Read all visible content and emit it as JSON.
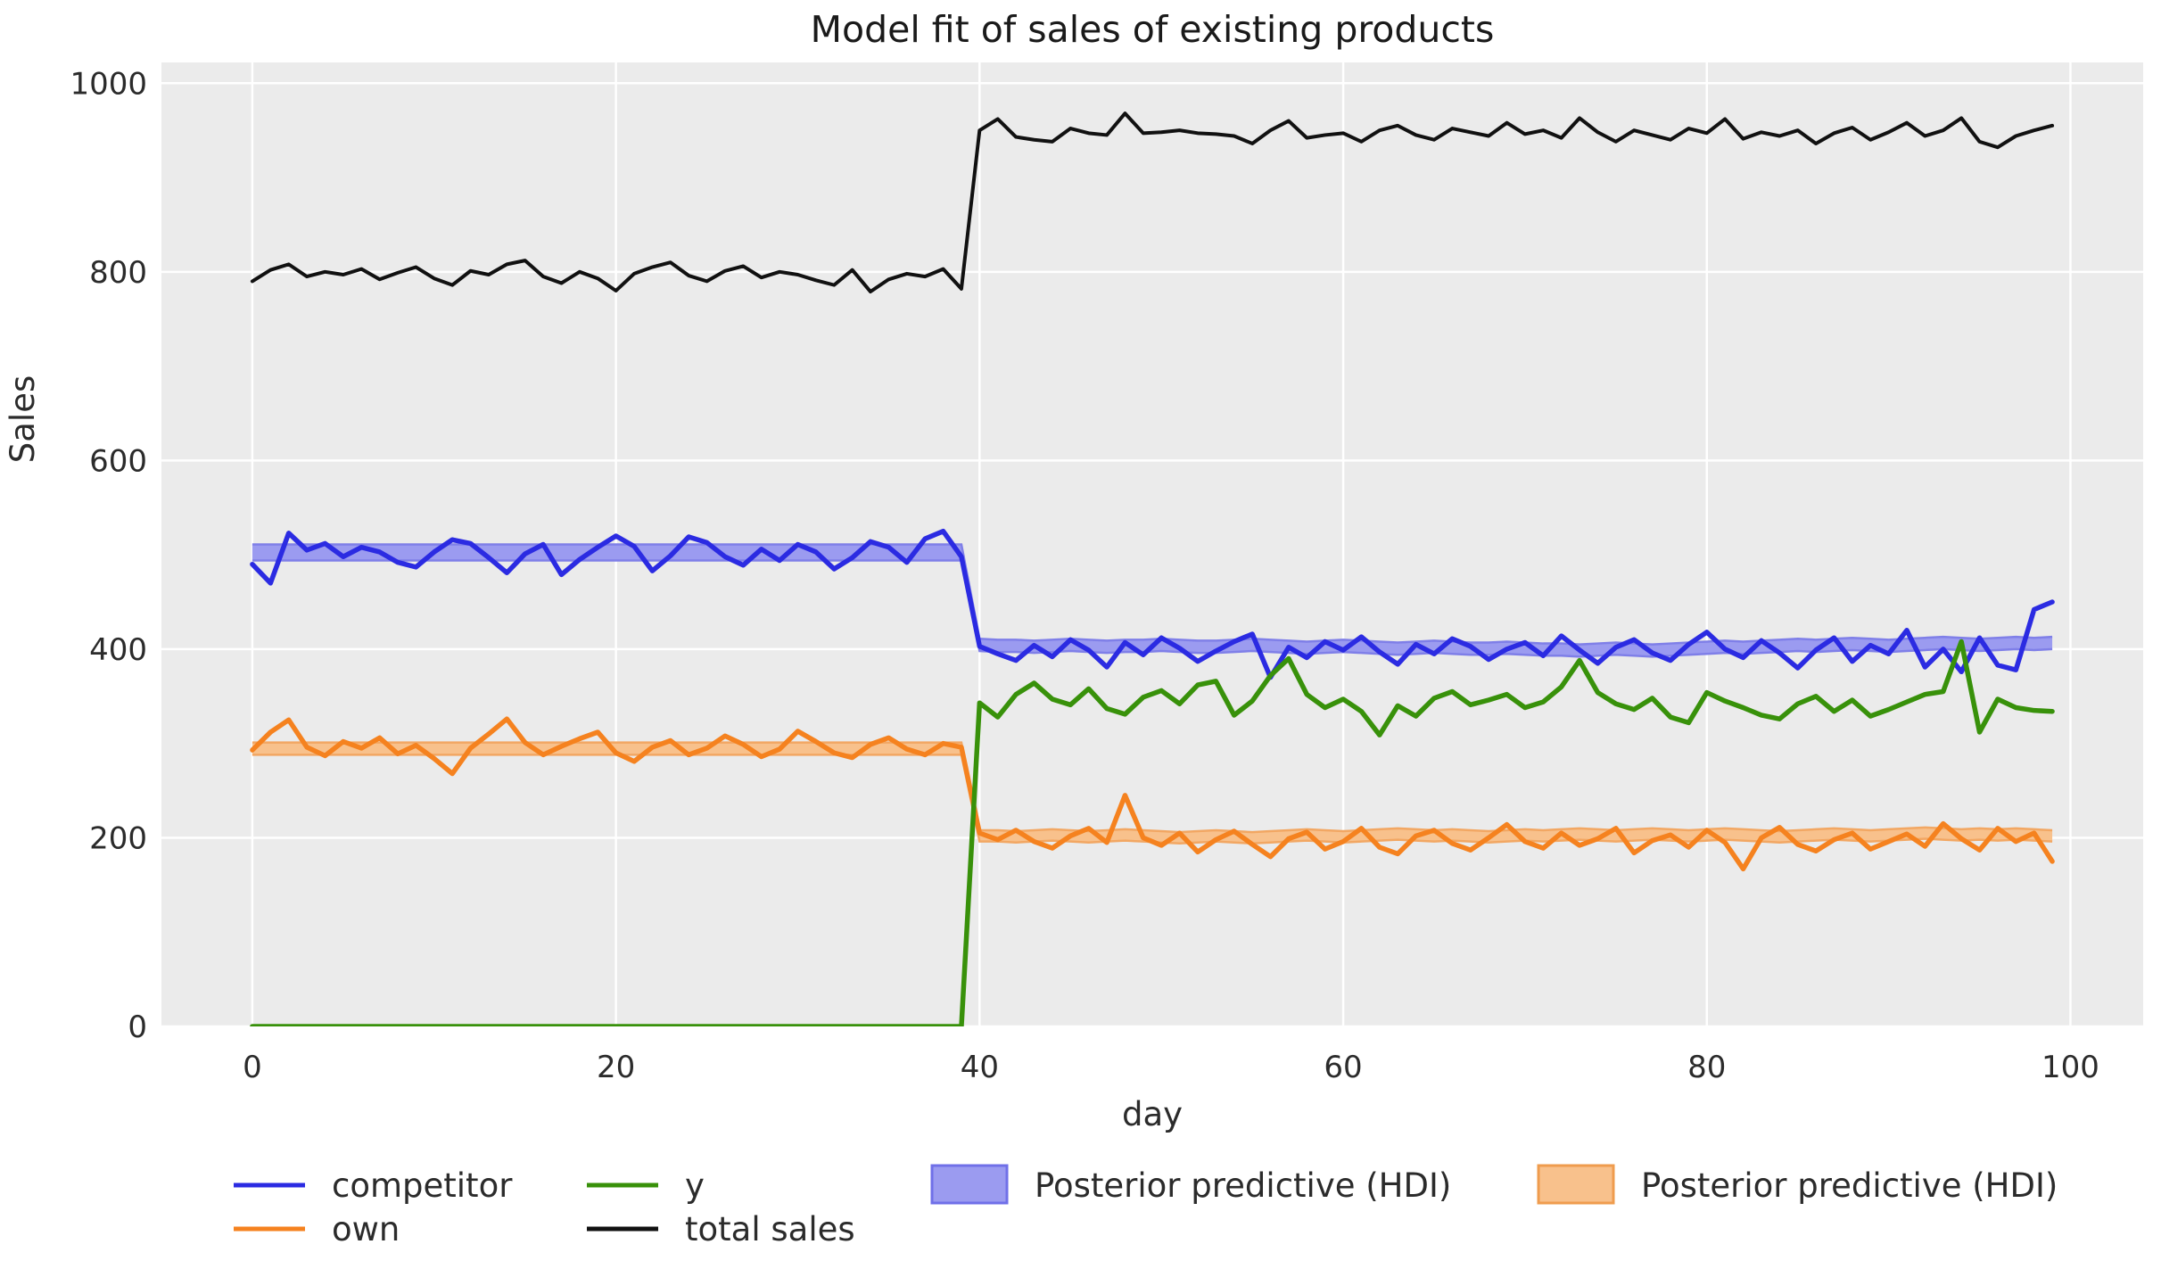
{
  "chart_data": {
    "type": "line",
    "title": "Model fit of sales of existing products",
    "xlabel": "day",
    "ylabel": "Sales",
    "xlim": [
      -5,
      104
    ],
    "ylim": [
      0,
      1022
    ],
    "x_ticks": [
      0,
      20,
      40,
      60,
      80,
      100
    ],
    "y_ticks": [
      0,
      200,
      400,
      600,
      800,
      1000
    ],
    "x_range": [
      0,
      99
    ],
    "grid": "on",
    "legend_position": "below",
    "colors": {
      "figure_background": "#ffffff",
      "axes_background": "#ebebeb",
      "grid": "#ffffff",
      "text": "#2b2b2b"
    },
    "series": [
      {
        "name": "competitor",
        "color": "#2b2be2",
        "values": [
          490,
          470,
          523,
          505,
          512,
          498,
          508,
          503,
          492,
          487,
          503,
          516,
          512,
          497,
          481,
          501,
          511,
          479,
          495,
          508,
          520,
          509,
          483,
          499,
          519,
          513,
          498,
          489,
          506,
          494,
          511,
          503,
          485,
          497,
          514,
          508,
          492,
          517,
          525,
          498,
          403,
          395,
          388,
          404,
          392,
          410,
          399,
          381,
          407,
          394,
          412,
          401,
          387,
          398,
          408,
          416,
          370,
          402,
          391,
          408,
          399,
          413,
          397,
          384,
          405,
          395,
          411,
          403,
          389,
          400,
          407,
          393,
          414,
          399,
          385,
          402,
          410,
          396,
          388,
          405,
          418,
          400,
          391,
          409,
          396,
          380,
          399,
          412,
          387,
          404,
          395,
          420,
          381,
          400,
          376,
          412,
          383,
          378,
          442,
          450
        ]
      },
      {
        "name": "own",
        "color": "#f5821f",
        "values": [
          293,
          312,
          325,
          296,
          287,
          302,
          295,
          306,
          289,
          298,
          284,
          268,
          295,
          310,
          326,
          301,
          288,
          297,
          305,
          312,
          290,
          281,
          296,
          303,
          288,
          295,
          308,
          299,
          286,
          294,
          313,
          302,
          290,
          285,
          299,
          306,
          294,
          288,
          300,
          296,
          205,
          198,
          208,
          196,
          189,
          202,
          210,
          195,
          245,
          200,
          192,
          205,
          185,
          198,
          207,
          193,
          180,
          199,
          206,
          188,
          196,
          210,
          190,
          183,
          202,
          208,
          194,
          187,
          200,
          214,
          196,
          189,
          205,
          192,
          199,
          210,
          184,
          197,
          203,
          190,
          208,
          195,
          167,
          200,
          211,
          193,
          186,
          198,
          205,
          188,
          196,
          204,
          191,
          215,
          199,
          187,
          210,
          196,
          205,
          175
        ]
      },
      {
        "name": "y",
        "color": "#38910a",
        "values": [
          0,
          0,
          0,
          0,
          0,
          0,
          0,
          0,
          0,
          0,
          0,
          0,
          0,
          0,
          0,
          0,
          0,
          0,
          0,
          0,
          0,
          0,
          0,
          0,
          0,
          0,
          0,
          0,
          0,
          0,
          0,
          0,
          0,
          0,
          0,
          0,
          0,
          0,
          0,
          0,
          343,
          328,
          352,
          364,
          347,
          341,
          358,
          337,
          331,
          349,
          356,
          342,
          362,
          366,
          330,
          345,
          372,
          390,
          352,
          338,
          347,
          334,
          309,
          340,
          329,
          348,
          355,
          341,
          346,
          352,
          338,
          344,
          360,
          388,
          354,
          342,
          336,
          348,
          328,
          322,
          354,
          345,
          338,
          330,
          326,
          342,
          350,
          334,
          346,
          329,
          336,
          344,
          352,
          355,
          408,
          312,
          347,
          338,
          335,
          334
        ]
      },
      {
        "name": "total sales",
        "color": "#111111",
        "values": [
          790,
          802,
          808,
          795,
          800,
          797,
          803,
          792,
          799,
          805,
          793,
          786,
          801,
          797,
          808,
          812,
          795,
          788,
          800,
          793,
          780,
          798,
          805,
          810,
          796,
          790,
          801,
          806,
          794,
          800,
          797,
          791,
          786,
          802,
          779,
          792,
          798,
          795,
          803,
          782,
          950,
          962,
          943,
          940,
          938,
          952,
          947,
          945,
          968,
          947,
          948,
          950,
          947,
          946,
          944,
          936,
          950,
          960,
          942,
          945,
          947,
          938,
          950,
          955,
          945,
          940,
          952,
          948,
          944,
          958,
          946,
          950,
          942,
          963,
          948,
          938,
          950,
          945,
          940,
          952,
          947,
          962,
          941,
          948,
          944,
          950,
          936,
          947,
          953,
          940,
          948,
          958,
          944,
          950,
          963,
          938,
          932,
          944,
          950,
          955
        ]
      }
    ],
    "bands": [
      {
        "name": "Posterior predictive (HDI)",
        "for_series": "competitor",
        "fill": "#9b9bf0",
        "edge": "#7f7fe8",
        "lower": [
          494,
          494,
          494,
          494,
          494,
          494,
          494,
          494,
          494,
          494,
          494,
          494,
          494,
          494,
          494,
          494,
          494,
          494,
          494,
          494,
          494,
          494,
          494,
          494,
          494,
          494,
          494,
          494,
          494,
          494,
          494,
          494,
          494,
          494,
          494,
          494,
          494,
          494,
          494,
          494,
          398,
          397,
          397,
          396,
          397,
          398,
          397,
          396,
          397,
          397,
          398,
          397,
          396,
          396,
          397,
          398,
          397,
          396,
          395,
          396,
          397,
          396,
          395,
          394,
          395,
          396,
          395,
          394,
          394,
          395,
          394,
          393,
          393,
          392,
          393,
          394,
          393,
          392,
          393,
          394,
          395,
          396,
          395,
          396,
          397,
          398,
          397,
          398,
          399,
          398,
          397,
          398,
          399,
          400,
          399,
          398,
          399,
          400,
          399,
          400
        ],
        "upper": [
          511,
          511,
          511,
          511,
          511,
          511,
          511,
          511,
          511,
          511,
          511,
          511,
          511,
          511,
          511,
          511,
          511,
          511,
          511,
          511,
          511,
          511,
          511,
          511,
          511,
          511,
          511,
          511,
          511,
          511,
          511,
          511,
          511,
          511,
          511,
          511,
          511,
          511,
          511,
          511,
          411,
          410,
          410,
          409,
          410,
          411,
          410,
          409,
          410,
          410,
          411,
          410,
          409,
          409,
          410,
          411,
          410,
          409,
          408,
          409,
          410,
          409,
          408,
          407,
          408,
          409,
          408,
          407,
          407,
          408,
          407,
          406,
          406,
          405,
          406,
          407,
          406,
          405,
          406,
          407,
          408,
          409,
          408,
          409,
          410,
          411,
          410,
          411,
          412,
          411,
          410,
          411,
          412,
          413,
          412,
          411,
          412,
          413,
          412,
          413
        ]
      },
      {
        "name": "Posterior predictive (HDI)",
        "for_series": "own",
        "fill": "#f8c18c",
        "edge": "#f2a763",
        "lower": [
          288,
          288,
          288,
          288,
          288,
          288,
          288,
          288,
          288,
          288,
          288,
          288,
          288,
          288,
          288,
          288,
          288,
          288,
          288,
          288,
          288,
          288,
          288,
          288,
          288,
          288,
          288,
          288,
          288,
          288,
          288,
          288,
          288,
          288,
          288,
          288,
          288,
          288,
          288,
          288,
          196,
          196,
          195,
          196,
          197,
          196,
          195,
          196,
          197,
          196,
          195,
          194,
          195,
          196,
          195,
          194,
          195,
          196,
          197,
          196,
          195,
          196,
          197,
          198,
          197,
          196,
          197,
          196,
          195,
          196,
          197,
          196,
          197,
          198,
          197,
          196,
          197,
          198,
          197,
          196,
          197,
          198,
          197,
          196,
          195,
          196,
          197,
          198,
          197,
          196,
          197,
          198,
          199,
          198,
          197,
          198,
          197,
          198,
          197,
          196
        ],
        "upper": [
          301,
          301,
          301,
          301,
          301,
          301,
          301,
          301,
          301,
          301,
          301,
          301,
          301,
          301,
          301,
          301,
          301,
          301,
          301,
          301,
          301,
          301,
          301,
          301,
          301,
          301,
          301,
          301,
          301,
          301,
          301,
          301,
          301,
          301,
          301,
          301,
          301,
          301,
          301,
          301,
          208,
          208,
          207,
          208,
          209,
          208,
          207,
          208,
          209,
          208,
          207,
          206,
          207,
          208,
          207,
          206,
          207,
          208,
          209,
          208,
          207,
          208,
          209,
          210,
          209,
          208,
          209,
          208,
          207,
          208,
          209,
          208,
          209,
          210,
          209,
          208,
          209,
          210,
          209,
          208,
          209,
          210,
          209,
          208,
          207,
          208,
          209,
          210,
          209,
          208,
          209,
          210,
          211,
          210,
          209,
          210,
          209,
          210,
          209,
          208
        ]
      }
    ]
  },
  "legend": {
    "rows": [
      [
        "competitor",
        "y",
        "hdi-blue",
        "hdi-orange"
      ],
      [
        "own",
        "total sales"
      ]
    ]
  }
}
